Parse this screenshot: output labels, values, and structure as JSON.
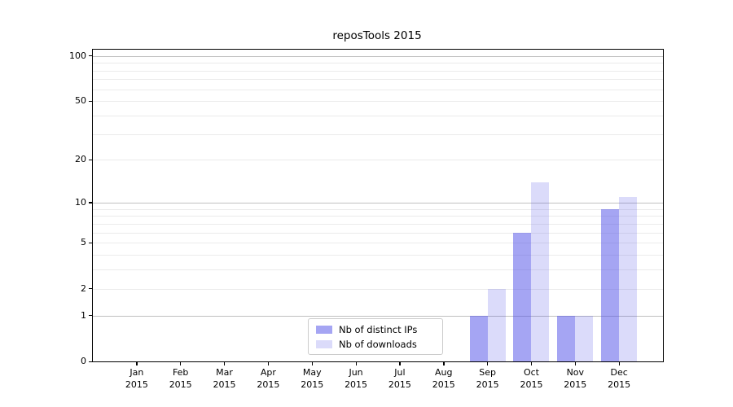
{
  "title": "reposTools 2015",
  "colors": {
    "bar_distinct_ips": "rgba(76,76,232,0.5)",
    "bar_downloads": "rgba(76,76,232,0.2)",
    "grid_major": "#c0c0c0",
    "grid_minor": "#ebebeb",
    "axis": "#000000",
    "legend_border": "#cccccc",
    "background": "#ffffff"
  },
  "legend": {
    "items": [
      {
        "label": "Nb of distinct IPs"
      },
      {
        "label": "Nb of downloads"
      }
    ]
  },
  "chart_data": {
    "type": "bar",
    "title": "reposTools 2015",
    "categories": [
      "Jan",
      "Feb",
      "Mar",
      "Apr",
      "May",
      "Jun",
      "Jul",
      "Aug",
      "Sep",
      "Oct",
      "Nov",
      "Dec"
    ],
    "year_label": "2015",
    "series": [
      {
        "name": "Nb of distinct IPs",
        "color": "rgba(76,76,232,0.5)",
        "values": [
          0,
          0,
          0,
          0,
          0,
          0,
          0,
          0,
          1,
          6,
          1,
          9
        ]
      },
      {
        "name": "Nb of downloads",
        "color": "rgba(76,76,232,0.2)",
        "values": [
          0,
          0,
          0,
          0,
          0,
          0,
          0,
          0,
          2,
          14,
          1,
          11
        ]
      }
    ],
    "xlabel": "",
    "ylabel": "",
    "yscale": "log1p",
    "ylim": [
      0,
      110
    ],
    "yticks": [
      0,
      1,
      2,
      5,
      10,
      20,
      50,
      100
    ],
    "major_gridlines": [
      1,
      10,
      100
    ],
    "minor_gridlines": [
      2,
      3,
      4,
      5,
      6,
      7,
      8,
      9,
      20,
      30,
      40,
      50,
      60,
      70,
      80,
      90
    ],
    "grid": "horizontal-only",
    "legend_position": "inside-bottom-center"
  }
}
